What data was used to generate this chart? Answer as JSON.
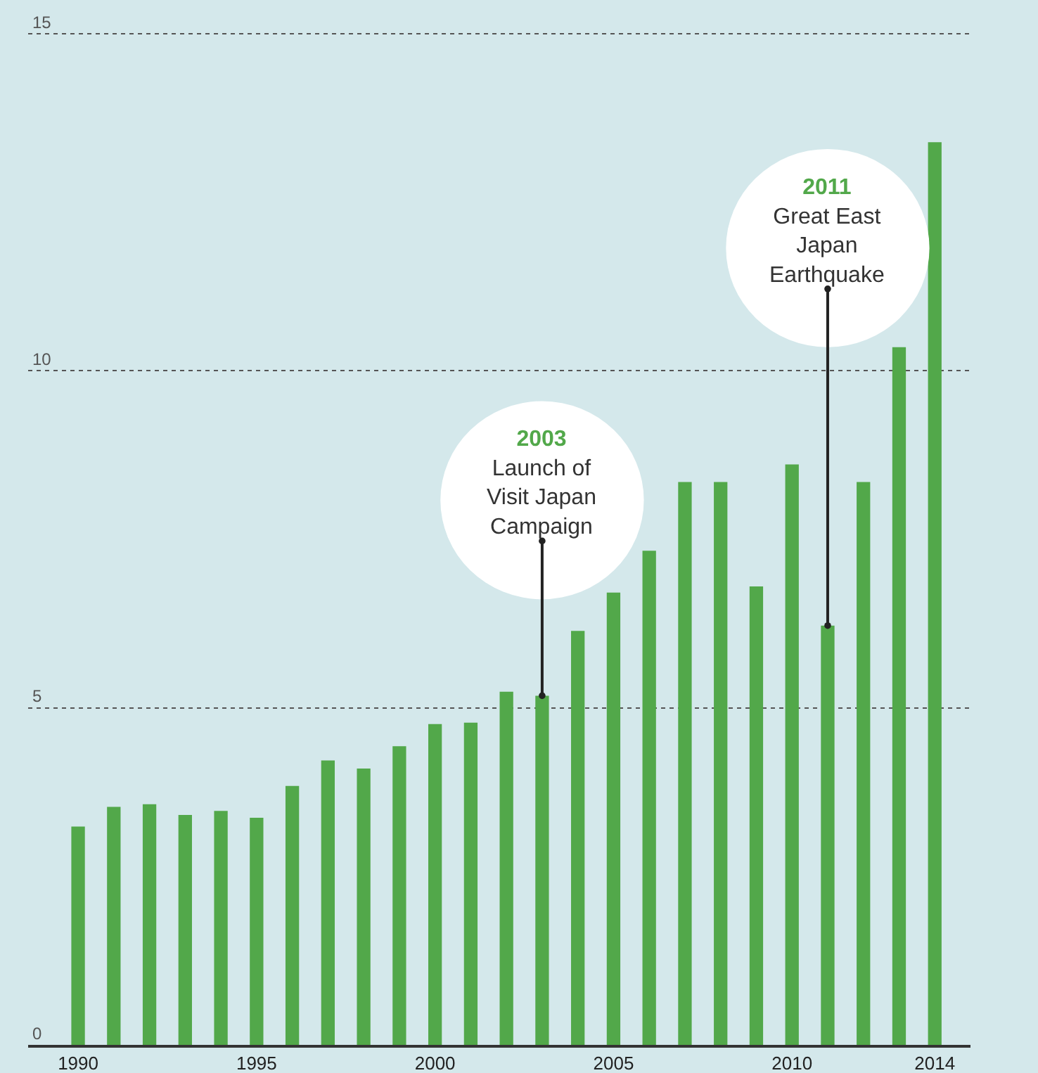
{
  "chart_data": {
    "type": "bar",
    "x": [
      1990,
      1991,
      1992,
      1993,
      1994,
      1995,
      1996,
      1997,
      1998,
      1999,
      2000,
      2001,
      2002,
      2003,
      2004,
      2005,
      2006,
      2007,
      2008,
      2009,
      2010,
      2011,
      2012,
      2013,
      2014
    ],
    "values": [
      3.24,
      3.53,
      3.57,
      3.41,
      3.47,
      3.37,
      3.84,
      4.22,
      4.1,
      4.43,
      4.76,
      4.78,
      5.24,
      5.18,
      6.14,
      6.71,
      7.33,
      8.35,
      8.35,
      6.8,
      8.61,
      6.22,
      8.35,
      10.35,
      13.39
    ],
    "color": "#52a84a",
    "xlim": [
      1988.6,
      2015.0
    ],
    "xticks": [
      1990,
      1995,
      2000,
      2005,
      2010,
      2014
    ],
    "ylim": [
      0,
      15.5
    ],
    "yticks": [
      0,
      5,
      10,
      15
    ],
    "grid": "y",
    "legend": false,
    "annotations": [
      {
        "text": "2003\nLaunch of\nVisit Japan\nCampaign",
        "x": 2003,
        "y": 5.18
      },
      {
        "text": "2011\nGreat East\nJapan\nEarthquake",
        "x": 2011,
        "y": 6.22
      }
    ]
  }
}
